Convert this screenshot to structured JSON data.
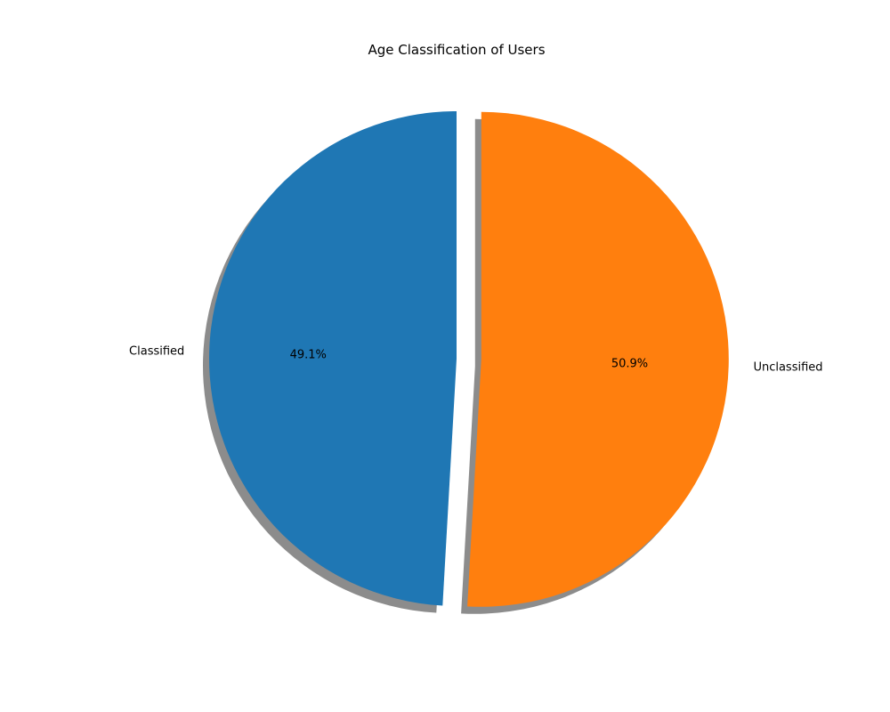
{
  "chart_data": {
    "type": "pie",
    "title": "Age Classification of Users",
    "categories": [
      "Classified",
      "Unclassified"
    ],
    "values": [
      49.1,
      50.9
    ],
    "value_labels": [
      "49.1%",
      "50.9%"
    ],
    "colors": [
      "#1f77b4",
      "#ff7f0e"
    ],
    "start_angle_deg": 90,
    "direction": "counterclockwise",
    "explode": [
      0,
      0.1
    ],
    "shadow": true,
    "legend": "none"
  }
}
